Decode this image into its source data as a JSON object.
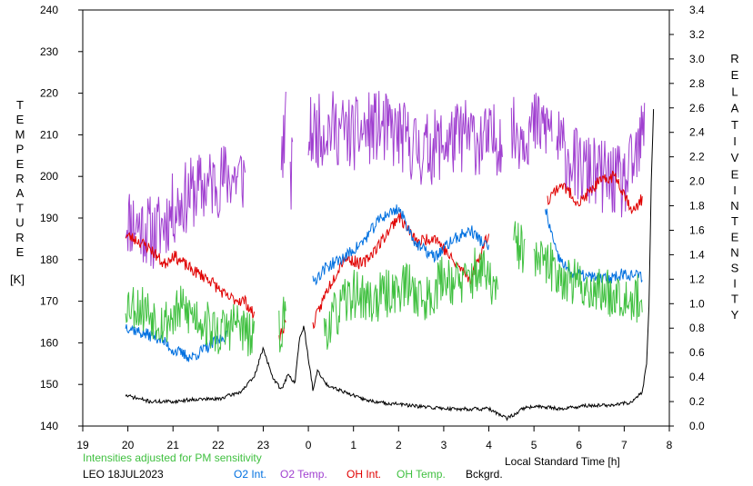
{
  "chart_data": {
    "type": "line",
    "left_axis": {
      "label_letters": [
        "T",
        "E",
        "M",
        "P",
        "E",
        "R",
        "A",
        "T",
        "U",
        "R",
        "E"
      ],
      "unit": "[K]",
      "ylim": [
        140,
        240
      ],
      "ticks": [
        "140",
        "150",
        "160",
        "170",
        "180",
        "190",
        "200",
        "210",
        "220",
        "230",
        "240"
      ]
    },
    "right_axis": {
      "label1_letters": [
        "R",
        "E",
        "L",
        "A",
        "T",
        "I",
        "V",
        "E"
      ],
      "label2_letters": [
        "I",
        "N",
        "T",
        "E",
        "N",
        "S",
        "I",
        "T",
        "Y"
      ],
      "ylim": [
        0.0,
        3.4
      ],
      "ticks": [
        "0.0",
        "0.2",
        "0.4",
        "0.6",
        "0.8",
        "1.0",
        "1.2",
        "1.4",
        "1.6",
        "1.8",
        "2.0",
        "2.2",
        "2.4",
        "2.6",
        "2.8",
        "3.0",
        "3.2",
        "3.4"
      ]
    },
    "x_axis": {
      "label": "Local Standard Time [h]",
      "ticks": [
        "19",
        "20",
        "21",
        "22",
        "23",
        "0",
        "1",
        "2",
        "3",
        "4",
        "5",
        "6",
        "7",
        "8"
      ],
      "xlim": [
        19,
        32
      ]
    },
    "note": "Intensities adjusted for PM sensitivity",
    "station_date": "LEO 18JUL2023",
    "legend": [
      {
        "name": "O2 Int.",
        "color": "#0070e0"
      },
      {
        "name": "O2 Temp.",
        "color": "#a040d0"
      },
      {
        "name": "OH Int.",
        "color": "#e00000"
      },
      {
        "name": "OH Temp.",
        "color": "#40c040"
      },
      {
        "name": "Bckgrd.",
        "color": "#000000"
      }
    ],
    "series": [
      {
        "name": "O2 Temp.",
        "axis": "left",
        "color": "#a040d0",
        "noise": 9,
        "seed": 11,
        "segments": [
          {
            "x": [
              19.95,
              20.3,
              20.6,
              21.0,
              21.4,
              21.8,
              22.2,
              22.6
            ],
            "y": [
              190,
              188,
              186,
              192,
              196,
              198,
              200,
              200
            ]
          },
          {
            "x": [
              23.4,
              23.5
            ],
            "y": [
              205,
              212
            ]
          },
          {
            "x": [
              23.6,
              23.65
            ],
            "y": [
              198,
              202
            ]
          },
          {
            "x": [
              24.0,
              24.5,
              25.0,
              25.5,
              26.0,
              26.5,
              27.0,
              27.5,
              28.0,
              28.3
            ],
            "y": [
              210,
              212,
              210,
              212,
              210,
              206,
              208,
              210,
              208,
              210
            ]
          },
          {
            "x": [
              28.5,
              28.8,
              29.1,
              29.4
            ],
            "y": [
              210,
              211,
              212,
              212
            ]
          },
          {
            "x": [
              29.5,
              30.0,
              30.5,
              31.0,
              31.3,
              31.45
            ],
            "y": [
              208,
              202,
              200,
              198,
              205,
              212
            ]
          }
        ]
      },
      {
        "name": "OH Int.",
        "axis": "right",
        "color": "#e00000",
        "noise": 0.05,
        "seed": 23,
        "segments": [
          {
            "x": [
              19.95,
              20.2,
              20.5,
              20.8,
              21.0,
              21.4,
              21.8,
              22.2,
              22.6,
              22.8
            ],
            "y": [
              1.56,
              1.52,
              1.45,
              1.32,
              1.4,
              1.28,
              1.2,
              1.05,
              1.02,
              0.9
            ]
          },
          {
            "x": [
              23.35,
              23.5
            ],
            "y": [
              0.72,
              0.85
            ]
          },
          {
            "x": [
              24.1,
              24.4,
              24.8,
              25.2,
              25.6,
              26.0,
              26.4,
              26.8,
              27.2,
              27.6,
              28.0
            ],
            "y": [
              0.82,
              1.1,
              1.38,
              1.32,
              1.5,
              1.72,
              1.5,
              1.55,
              1.35,
              1.2,
              1.58
            ]
          },
          {
            "x": [
              29.3,
              29.6,
              30.0,
              30.4,
              30.8,
              31.2,
              31.4
            ],
            "y": [
              1.85,
              1.98,
              1.82,
              1.98,
              2.05,
              1.75,
              1.86
            ]
          }
        ]
      },
      {
        "name": "O2 Int.",
        "axis": "right",
        "color": "#0070e0",
        "noise": 0.05,
        "seed": 37,
        "segments": [
          {
            "x": [
              19.95,
              20.3,
              20.7,
              21.0,
              21.4,
              21.8,
              22.2
            ],
            "y": [
              0.82,
              0.76,
              0.72,
              0.62,
              0.56,
              0.65,
              0.75
            ]
          },
          {
            "x": [
              24.1,
              24.4,
              24.8,
              25.2,
              25.6,
              26.0,
              26.4,
              26.8,
              27.2,
              27.6,
              28.0
            ],
            "y": [
              1.18,
              1.3,
              1.38,
              1.5,
              1.7,
              1.78,
              1.48,
              1.38,
              1.52,
              1.6,
              1.45
            ]
          },
          {
            "x": [
              29.25,
              29.5,
              29.8,
              30.2,
              30.6,
              31.0,
              31.4
            ],
            "y": [
              1.78,
              1.4,
              1.25,
              1.22,
              1.2,
              1.25,
              1.22
            ]
          }
        ]
      },
      {
        "name": "OH Temp.",
        "axis": "left",
        "color": "#40c040",
        "noise": 6,
        "seed": 53,
        "segments": [
          {
            "x": [
              19.95,
              20.4,
              20.8,
              21.2,
              21.6,
              22.0,
              22.4,
              22.8
            ],
            "y": [
              170,
              168,
              165,
              168,
              166,
              162,
              165,
              160
            ]
          },
          {
            "x": [
              23.35,
              23.5
            ],
            "y": [
              162,
              168
            ]
          },
          {
            "x": [
              24.35,
              24.7,
              25.0,
              25.4,
              25.8,
              26.2,
              26.6,
              27.0,
              27.4,
              27.8,
              28.2
            ],
            "y": [
              163,
              168,
              172,
              170,
              172,
              174,
              170,
              176,
              174,
              178,
              172
            ]
          },
          {
            "x": [
              28.55,
              28.8
            ],
            "y": [
              184,
              182
            ]
          },
          {
            "x": [
              29.0,
              29.4,
              29.8,
              30.2,
              30.6,
              31.0,
              31.4
            ],
            "y": [
              180,
              178,
              175,
              173,
              172,
              172,
              170
            ]
          }
        ]
      },
      {
        "name": "Bckgrd.",
        "axis": "right",
        "color": "#000000",
        "noise": 0.015,
        "seed": 71,
        "segments": [
          {
            "x": [
              19.95,
              20.5,
              21.0,
              21.5,
              22.0,
              22.5,
              22.8,
              23.0,
              23.2,
              23.4,
              23.55,
              23.7,
              23.8,
              23.9,
              24.0,
              24.1,
              24.2,
              24.4,
              24.8,
              25.2,
              25.6,
              26.0,
              26.4,
              26.8,
              27.2,
              27.6,
              28.0,
              28.4,
              28.8,
              29.2,
              29.6,
              30.0,
              30.4,
              30.8,
              31.2,
              31.4,
              31.5,
              31.55,
              31.6,
              31.65
            ],
            "y": [
              0.25,
              0.2,
              0.2,
              0.22,
              0.22,
              0.28,
              0.4,
              0.64,
              0.4,
              0.3,
              0.42,
              0.35,
              0.7,
              0.82,
              0.55,
              0.3,
              0.45,
              0.34,
              0.28,
              0.22,
              0.19,
              0.18,
              0.16,
              0.15,
              0.14,
              0.14,
              0.14,
              0.06,
              0.15,
              0.16,
              0.14,
              0.16,
              0.17,
              0.17,
              0.2,
              0.28,
              0.52,
              1.0,
              2.0,
              2.6
            ]
          }
        ]
      }
    ]
  }
}
